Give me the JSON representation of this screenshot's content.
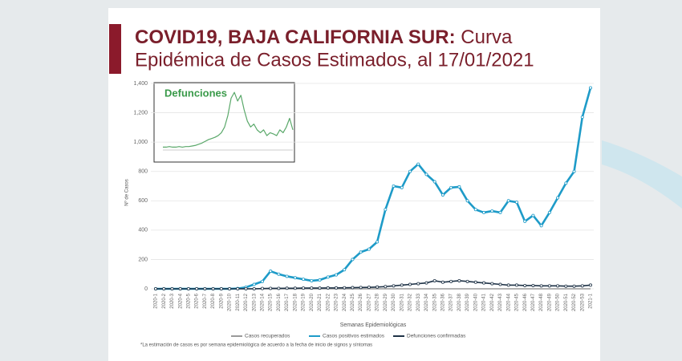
{
  "chart_data": [
    {
      "type": "line",
      "title_bold": "COVID19, BAJA CALIFORNIA SUR:",
      "title_rest": "Curva",
      "title_line2": "Epidémica de Casos Estimados, al 17/01/2021",
      "xlabel": "Semanas Epidemiológicas",
      "ylabel": "Nº de Casos",
      "footnote": "*La estimación de casos es por semana epidemiológica de acuerdo a la fecha de inicio de signos y síntomas",
      "categories": [
        "2020-1",
        "2020-2",
        "2020-3",
        "2020-4",
        "2020-5",
        "2020-6",
        "2020-7",
        "2020-8",
        "2020-9",
        "2020-10",
        "2020-11",
        "2020-12",
        "2020-13",
        "2020-14",
        "2020-15",
        "2020-16",
        "2020-17",
        "2020-18",
        "2020-19",
        "2020-20",
        "2020-21",
        "2020-22",
        "2020-23",
        "2020-24",
        "2020-25",
        "2020-26",
        "2020-27",
        "2020-28",
        "2020-29",
        "2020-30",
        "2020-31",
        "2020-32",
        "2020-33",
        "2020-34",
        "2020-35",
        "2020-36",
        "2020-37",
        "2020-38",
        "2020-39",
        "2020-40",
        "2020-41",
        "2020-42",
        "2020-43",
        "2020-44",
        "2020-45",
        "2020-46",
        "2020-47",
        "2020-48",
        "2020-49",
        "2020-50",
        "2020-51",
        "2020-52",
        "2020-53",
        "2021-1"
      ],
      "series": [
        {
          "name": "Casos recuperados",
          "color": "#9a9a9a",
          "values": [
            0,
            0,
            0,
            0,
            0,
            0,
            0,
            0,
            0,
            0,
            0,
            0,
            0,
            0,
            0,
            0,
            0,
            0,
            0,
            0,
            0,
            0,
            0,
            0,
            0,
            0,
            0,
            0,
            0,
            0,
            0,
            0,
            0,
            0,
            0,
            0,
            0,
            0,
            0,
            0,
            0,
            0,
            0,
            0,
            0,
            0,
            0,
            0,
            0,
            0,
            0,
            0,
            0,
            0
          ]
        },
        {
          "name": "Casos positivos estimados",
          "color": "#1e9bc8",
          "values": [
            0,
            0,
            0,
            0,
            0,
            0,
            0,
            0,
            0,
            0,
            2,
            10,
            30,
            50,
            120,
            100,
            85,
            75,
            65,
            55,
            60,
            80,
            95,
            130,
            200,
            250,
            270,
            320,
            540,
            700,
            690,
            800,
            850,
            780,
            730,
            640,
            690,
            695,
            600,
            540,
            520,
            530,
            520,
            600,
            590,
            460,
            500,
            430,
            520,
            620,
            720,
            800,
            1170,
            1370
          ]
        },
        {
          "name": "Defunciones confirmadas",
          "color": "#1f3347",
          "values": [
            0,
            0,
            0,
            0,
            0,
            0,
            0,
            0,
            0,
            0,
            0,
            0,
            0,
            2,
            3,
            3,
            4,
            4,
            5,
            5,
            5,
            6,
            6,
            7,
            8,
            9,
            10,
            12,
            15,
            20,
            25,
            30,
            35,
            40,
            55,
            45,
            50,
            55,
            50,
            45,
            40,
            35,
            30,
            25,
            25,
            22,
            22,
            20,
            20,
            20,
            18,
            18,
            20,
            25
          ]
        }
      ],
      "ylim": [
        0,
        1400
      ],
      "yticks": [
        0,
        200,
        400,
        600,
        800,
        {
          "value": 1000,
          "label": "1,000"
        },
        {
          "value": 1200,
          "label": "1,200"
        },
        {
          "value": 1400,
          "label": "1,400"
        }
      ],
      "grid": true
    },
    {
      "type": "line",
      "title": "Defunciones",
      "color": "#5aa86a",
      "values": [
        5,
        5,
        6,
        5,
        5,
        6,
        5,
        6,
        6,
        7,
        8,
        10,
        12,
        15,
        18,
        20,
        22,
        25,
        30,
        40,
        60,
        90,
        100,
        85,
        95,
        70,
        50,
        40,
        45,
        35,
        30,
        35,
        25,
        30,
        28,
        25,
        35,
        30,
        40,
        55,
        35
      ],
      "ylim": [
        0,
        110
      ]
    }
  ]
}
